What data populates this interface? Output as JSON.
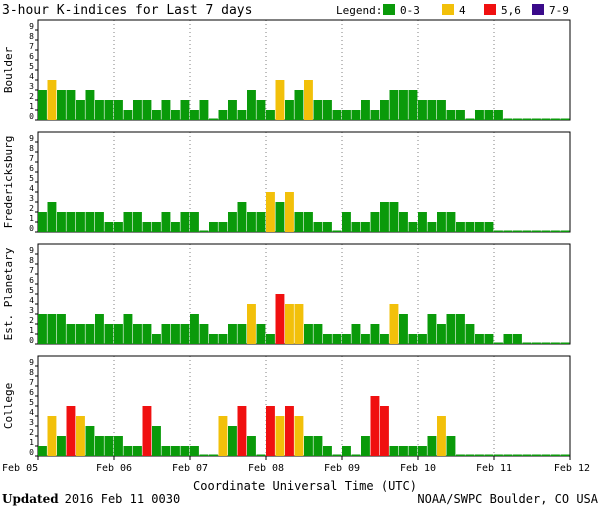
{
  "chart_data": {
    "type": "bar",
    "title": "3-hour K-indices for Last 7 days",
    "legend": {
      "label": "Legend:",
      "placement": "top-right",
      "items": [
        {
          "label": "0-3",
          "color": "#0a9a0a"
        },
        {
          "label": "4",
          "color": "#f2c00a"
        },
        {
          "label": "5,6",
          "color": "#f01010"
        },
        {
          "label": "7-9",
          "color": "#3a0a8a"
        }
      ]
    },
    "xlabel": "Coordinate Universal Time (UTC)",
    "x_ticks": [
      "Feb 05",
      "Feb 06",
      "Feb 07",
      "Feb 08",
      "Feb 09",
      "Feb 10",
      "Feb 11",
      "Feb 12"
    ],
    "ylim": [
      0,
      9
    ],
    "y_ticks": [
      "0",
      "1",
      "2",
      "3",
      "4",
      "5",
      "6",
      "7",
      "8",
      "9"
    ],
    "interval_hours": 3,
    "series": [
      {
        "name": "Boulder",
        "values": [
          3,
          4,
          3,
          3,
          2,
          3,
          2,
          2,
          2,
          1,
          2,
          2,
          1,
          2,
          1,
          2,
          1,
          2,
          0,
          1,
          2,
          1,
          3,
          2,
          1,
          4,
          2,
          3,
          4,
          2,
          2,
          1,
          1,
          1,
          2,
          1,
          2,
          3,
          3,
          3,
          2,
          2,
          2,
          1,
          1,
          0,
          1,
          1,
          1,
          0,
          0,
          0,
          0,
          0,
          0,
          0
        ]
      },
      {
        "name": "Fredericksburg",
        "values": [
          2,
          3,
          2,
          2,
          2,
          2,
          2,
          1,
          1,
          2,
          2,
          1,
          1,
          2,
          1,
          2,
          2,
          0,
          1,
          1,
          2,
          3,
          2,
          2,
          4,
          3,
          4,
          2,
          2,
          1,
          1,
          0,
          2,
          1,
          1,
          2,
          3,
          3,
          2,
          1,
          2,
          1,
          2,
          2,
          1,
          1,
          1,
          1,
          0,
          0,
          0,
          0,
          0,
          0,
          0,
          0
        ]
      },
      {
        "name": "Est. Planetary",
        "values": [
          3,
          3,
          3,
          2,
          2,
          2,
          3,
          2,
          2,
          3,
          2,
          2,
          1,
          2,
          2,
          2,
          3,
          2,
          1,
          1,
          2,
          2,
          4,
          2,
          1,
          5,
          4,
          4,
          2,
          2,
          1,
          1,
          1,
          2,
          1,
          2,
          1,
          4,
          3,
          1,
          1,
          3,
          2,
          3,
          3,
          2,
          1,
          1,
          0,
          1,
          1,
          0,
          0,
          0,
          0,
          0
        ]
      },
      {
        "name": "College",
        "values": [
          1,
          4,
          2,
          5,
          4,
          3,
          2,
          2,
          2,
          1,
          1,
          5,
          3,
          1,
          1,
          1,
          1,
          0,
          0,
          4,
          3,
          5,
          2,
          0,
          5,
          4,
          5,
          4,
          2,
          2,
          1,
          0,
          1,
          0,
          2,
          6,
          5,
          1,
          1,
          1,
          1,
          2,
          4,
          2,
          0,
          0,
          0,
          0,
          0,
          0,
          0,
          0,
          0,
          0,
          0,
          0
        ]
      }
    ]
  },
  "footer": {
    "updated_label": "Updated",
    "updated_time": "2016 Feb 11 0030",
    "source": "NOAA/SWPC Boulder, CO USA"
  }
}
